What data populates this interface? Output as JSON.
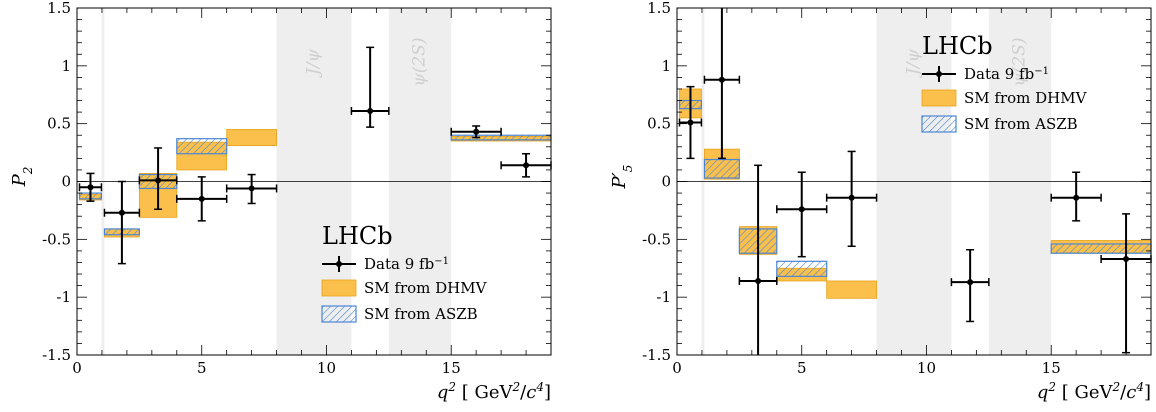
{
  "colors": {
    "dhmv_fill": "#fbc04c",
    "dhmv_edge": "#e8a21a",
    "aszb_edge": "#4a86d4",
    "aszb_hatch": "#4a86d4",
    "veto": "#eeeeee",
    "data": "#000000"
  },
  "chart_data": [
    {
      "type": "scatter",
      "ylabel": "P_2",
      "xlabel": "q^2 [GeV^2/c^4]",
      "xlim": [
        0,
        19
      ],
      "ylim": [
        -1.5,
        1.5
      ],
      "x_ticks": [
        "0",
        "5",
        "10",
        "15"
      ],
      "y_ticks": [
        "-1.5",
        "-1",
        "-0.5",
        "0",
        "0.5",
        "1",
        "1.5"
      ],
      "legend": {
        "title": "LHCb",
        "data_label": "Data  9 fb",
        "data_label_sup": "−1",
        "dhmv_label": "SM from DHMV",
        "aszb_label": "SM from ASZB",
        "placement": "lower-center"
      },
      "veto_regions": [
        {
          "x0": 0.98,
          "x1": 1.1,
          "label": ""
        },
        {
          "x0": 8.0,
          "x1": 11.0,
          "label": "J/ψ"
        },
        {
          "x0": 12.5,
          "x1": 15.0,
          "label": "ψ(2S)"
        }
      ],
      "data": [
        {
          "x0": 0.1,
          "x1": 0.98,
          "y": -0.05,
          "ylo": -0.17,
          "yhi": 0.07
        },
        {
          "x0": 1.1,
          "x1": 2.5,
          "y": -0.27,
          "ylo": -0.71,
          "yhi": 0.0
        },
        {
          "x0": 2.5,
          "x1": 4.0,
          "y": 0.01,
          "ylo": -0.24,
          "yhi": 0.29
        },
        {
          "x0": 4.0,
          "x1": 6.0,
          "y": -0.15,
          "ylo": -0.34,
          "yhi": 0.04
        },
        {
          "x0": 6.0,
          "x1": 8.0,
          "y": -0.06,
          "ylo": -0.19,
          "yhi": 0.06
        },
        {
          "x0": 11.0,
          "x1": 12.5,
          "y": 0.61,
          "ylo": 0.47,
          "yhi": 1.16
        },
        {
          "x0": 15.0,
          "x1": 17.0,
          "y": 0.43,
          "ylo": 0.38,
          "yhi": 0.48
        },
        {
          "x0": 17.0,
          "x1": 19.0,
          "y": 0.14,
          "ylo": 0.04,
          "yhi": 0.24
        }
      ],
      "dhmv": [
        {
          "x0": 0.1,
          "x1": 0.98,
          "ylo": -0.16,
          "yhi": -0.11
        },
        {
          "x0": 1.1,
          "x1": 2.5,
          "ylo": -0.48,
          "yhi": -0.41
        },
        {
          "x0": 2.5,
          "x1": 4.0,
          "ylo": -0.31,
          "yhi": 0.07
        },
        {
          "x0": 4.0,
          "x1": 6.0,
          "ylo": 0.1,
          "yhi": 0.34
        },
        {
          "x0": 6.0,
          "x1": 8.0,
          "ylo": 0.31,
          "yhi": 0.45
        },
        {
          "x0": 15.0,
          "x1": 19.0,
          "ylo": 0.35,
          "yhi": 0.39
        }
      ],
      "aszb": [
        {
          "x0": 0.1,
          "x1": 0.98,
          "ylo": -0.15,
          "yhi": -0.1
        },
        {
          "x0": 1.1,
          "x1": 2.5,
          "ylo": -0.46,
          "yhi": -0.41
        },
        {
          "x0": 2.5,
          "x1": 4.0,
          "ylo": -0.06,
          "yhi": 0.06
        },
        {
          "x0": 4.0,
          "x1": 6.0,
          "ylo": 0.24,
          "yhi": 0.37
        },
        {
          "x0": 15.0,
          "x1": 19.0,
          "ylo": 0.36,
          "yhi": 0.4
        }
      ]
    },
    {
      "type": "scatter",
      "ylabel": "P'_5",
      "xlabel": "q^2 [GeV^2/c^4]",
      "xlim": [
        0,
        19
      ],
      "ylim": [
        -1.5,
        1.5
      ],
      "x_ticks": [
        "0",
        "5",
        "10",
        "15"
      ],
      "y_ticks": [
        "-1.5",
        "-1",
        "-0.5",
        "0",
        "0.5",
        "1",
        "1.5"
      ],
      "legend": {
        "title": "LHCb",
        "data_label": "Data  9 fb",
        "data_label_sup": "−1",
        "dhmv_label": "SM from DHMV",
        "aszb_label": "SM from ASZB",
        "placement": "upper-center"
      },
      "veto_regions": [
        {
          "x0": 0.98,
          "x1": 1.1,
          "label": ""
        },
        {
          "x0": 8.0,
          "x1": 11.0,
          "label": "J/ψ"
        },
        {
          "x0": 12.5,
          "x1": 15.0,
          "label": "ψ(2S)"
        }
      ],
      "data": [
        {
          "x0": 0.1,
          "x1": 0.98,
          "y": 0.51,
          "ylo": 0.2,
          "yhi": 0.82
        },
        {
          "x0": 1.1,
          "x1": 2.5,
          "y": 0.88,
          "ylo": 0.2,
          "yhi": 1.55
        },
        {
          "x0": 2.5,
          "x1": 4.0,
          "y": -0.86,
          "ylo": -1.58,
          "yhi": 0.14
        },
        {
          "x0": 4.0,
          "x1": 6.0,
          "y": -0.24,
          "ylo": -0.65,
          "yhi": 0.08
        },
        {
          "x0": 6.0,
          "x1": 8.0,
          "y": -0.14,
          "ylo": -0.56,
          "yhi": 0.26
        },
        {
          "x0": 11.0,
          "x1": 12.5,
          "y": -0.87,
          "ylo": -1.21,
          "yhi": -0.59
        },
        {
          "x0": 15.0,
          "x1": 17.0,
          "y": -0.14,
          "ylo": -0.34,
          "yhi": 0.08
        },
        {
          "x0": 17.0,
          "x1": 19.0,
          "y": -0.67,
          "ylo": -1.48,
          "yhi": -0.28
        }
      ],
      "dhmv": [
        {
          "x0": 0.1,
          "x1": 0.98,
          "ylo": 0.55,
          "yhi": 0.8
        },
        {
          "x0": 1.1,
          "x1": 2.5,
          "ylo": 0.02,
          "yhi": 0.28
        },
        {
          "x0": 2.5,
          "x1": 4.0,
          "ylo": -0.63,
          "yhi": -0.39
        },
        {
          "x0": 4.0,
          "x1": 6.0,
          "ylo": -0.86,
          "yhi": -0.75
        },
        {
          "x0": 6.0,
          "x1": 8.0,
          "ylo": -1.01,
          "yhi": -0.86
        },
        {
          "x0": 15.0,
          "x1": 19.0,
          "ylo": -0.62,
          "yhi": -0.51
        }
      ],
      "aszb": [
        {
          "x0": 0.1,
          "x1": 0.98,
          "ylo": 0.63,
          "yhi": 0.7
        },
        {
          "x0": 1.1,
          "x1": 2.5,
          "ylo": 0.03,
          "yhi": 0.19
        },
        {
          "x0": 2.5,
          "x1": 4.0,
          "ylo": -0.62,
          "yhi": -0.41
        },
        {
          "x0": 4.0,
          "x1": 6.0,
          "ylo": -0.82,
          "yhi": -0.69
        },
        {
          "x0": 15.0,
          "x1": 19.0,
          "ylo": -0.62,
          "yhi": -0.54
        }
      ]
    }
  ]
}
